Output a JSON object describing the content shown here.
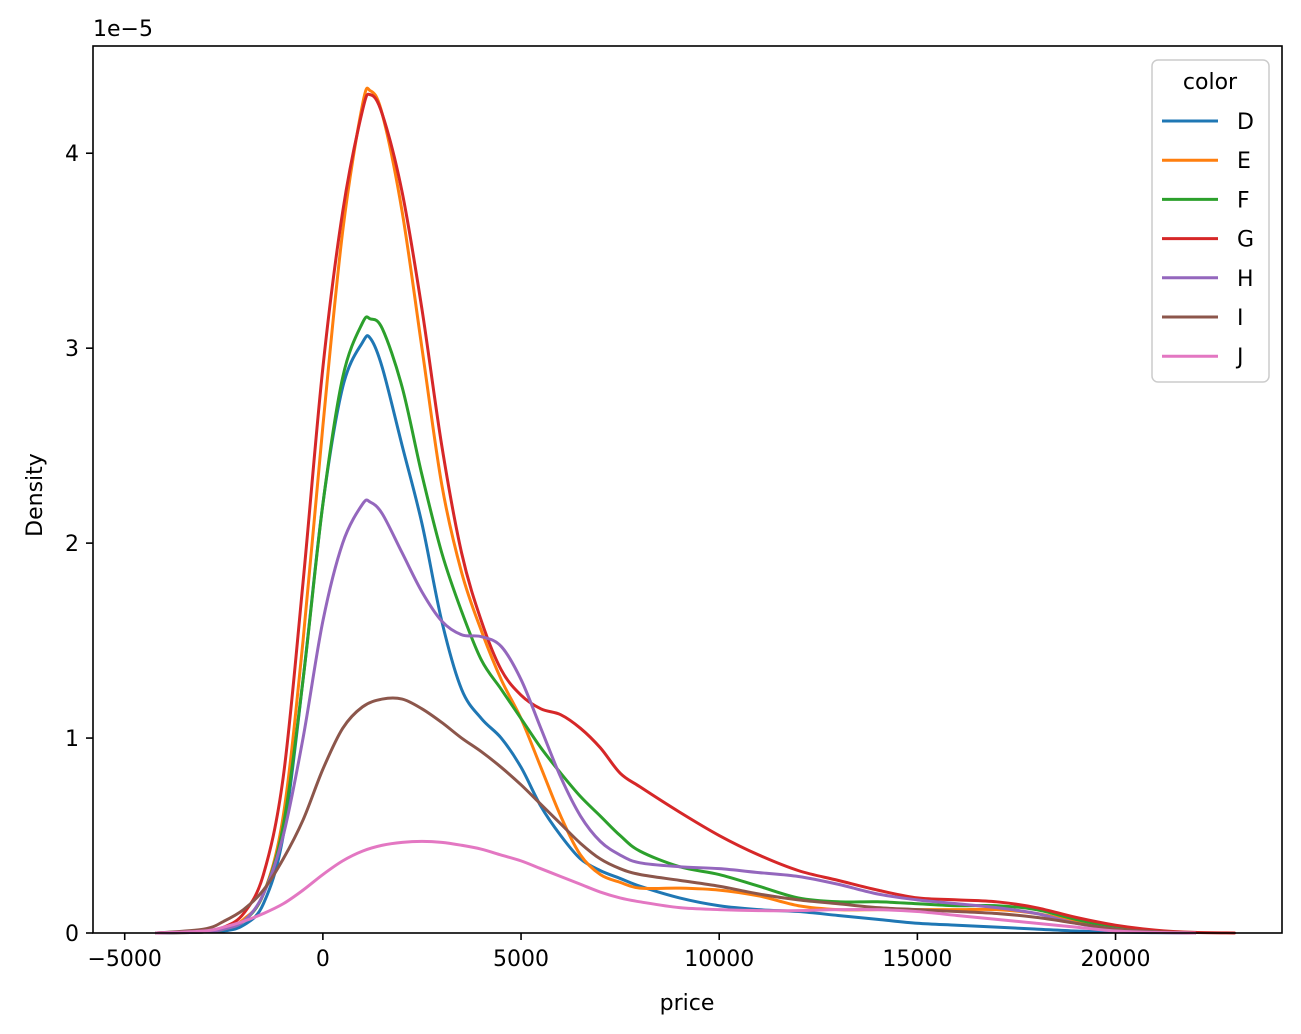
{
  "chart_data": {
    "type": "line",
    "title": "",
    "xlabel": "price",
    "ylabel": "Density",
    "y_scale_label": "1e−5",
    "xlim": [
      -5800,
      24200
    ],
    "ylim": [
      0,
      4.55
    ],
    "y_unit_multiplier": 1e-05,
    "xticks": [
      -5000,
      0,
      5000,
      10000,
      15000,
      20000
    ],
    "xtick_labels": [
      "−5000",
      "0",
      "5000",
      "10000",
      "15000",
      "20000"
    ],
    "yticks": [
      0,
      1,
      2,
      3,
      4
    ],
    "ytick_labels": [
      "0",
      "1",
      "2",
      "3",
      "4"
    ],
    "grid": false,
    "legend": {
      "title": "color",
      "placement": "top-right"
    },
    "series": [
      {
        "name": "D",
        "color": "#1f77b4",
        "points": [
          [
            -4200,
            0
          ],
          [
            -3000,
            0.005
          ],
          [
            -2500,
            0.01
          ],
          [
            -2000,
            0.04
          ],
          [
            -1500,
            0.15
          ],
          [
            -1000,
            0.5
          ],
          [
            -500,
            1.3
          ],
          [
            0,
            2.2
          ],
          [
            500,
            2.8
          ],
          [
            1000,
            3.03
          ],
          [
            1200,
            3.05
          ],
          [
            1500,
            2.9
          ],
          [
            2000,
            2.5
          ],
          [
            2500,
            2.1
          ],
          [
            3000,
            1.6
          ],
          [
            3500,
            1.25
          ],
          [
            4000,
            1.1
          ],
          [
            4500,
            1.0
          ],
          [
            5000,
            0.85
          ],
          [
            5500,
            0.65
          ],
          [
            6000,
            0.5
          ],
          [
            6500,
            0.38
          ],
          [
            7000,
            0.32
          ],
          [
            7500,
            0.28
          ],
          [
            8000,
            0.24
          ],
          [
            9000,
            0.18
          ],
          [
            10000,
            0.14
          ],
          [
            11000,
            0.12
          ],
          [
            12000,
            0.11
          ],
          [
            13000,
            0.09
          ],
          [
            14000,
            0.07
          ],
          [
            15000,
            0.05
          ],
          [
            16000,
            0.04
          ],
          [
            17000,
            0.03
          ],
          [
            18000,
            0.02
          ],
          [
            19000,
            0.01
          ],
          [
            20000,
            0.005
          ],
          [
            21000,
            0.002
          ],
          [
            22000,
            0
          ]
        ]
      },
      {
        "name": "E",
        "color": "#ff7f0e",
        "points": [
          [
            -4200,
            0
          ],
          [
            -3000,
            0.005
          ],
          [
            -2500,
            0.02
          ],
          [
            -2000,
            0.07
          ],
          [
            -1500,
            0.2
          ],
          [
            -1000,
            0.6
          ],
          [
            -500,
            1.5
          ],
          [
            0,
            2.6
          ],
          [
            500,
            3.6
          ],
          [
            1000,
            4.25
          ],
          [
            1200,
            4.32
          ],
          [
            1500,
            4.2
          ],
          [
            2000,
            3.7
          ],
          [
            2500,
            3.0
          ],
          [
            3000,
            2.3
          ],
          [
            3500,
            1.85
          ],
          [
            4000,
            1.55
          ],
          [
            4500,
            1.3
          ],
          [
            5000,
            1.1
          ],
          [
            5500,
            0.85
          ],
          [
            6000,
            0.6
          ],
          [
            6500,
            0.4
          ],
          [
            7000,
            0.3
          ],
          [
            7500,
            0.26
          ],
          [
            8000,
            0.23
          ],
          [
            9000,
            0.23
          ],
          [
            10000,
            0.22
          ],
          [
            11000,
            0.19
          ],
          [
            12000,
            0.14
          ],
          [
            13000,
            0.12
          ],
          [
            14000,
            0.12
          ],
          [
            15000,
            0.12
          ],
          [
            16000,
            0.12
          ],
          [
            17000,
            0.12
          ],
          [
            18000,
            0.1
          ],
          [
            19000,
            0.06
          ],
          [
            20000,
            0.03
          ],
          [
            21000,
            0.01
          ],
          [
            22000,
            0
          ]
        ]
      },
      {
        "name": "F",
        "color": "#2ca02c",
        "points": [
          [
            -4200,
            0
          ],
          [
            -3000,
            0.005
          ],
          [
            -2500,
            0.02
          ],
          [
            -2000,
            0.06
          ],
          [
            -1500,
            0.2
          ],
          [
            -1000,
            0.55
          ],
          [
            -500,
            1.3
          ],
          [
            0,
            2.2
          ],
          [
            500,
            2.85
          ],
          [
            1000,
            3.13
          ],
          [
            1200,
            3.15
          ],
          [
            1500,
            3.1
          ],
          [
            2000,
            2.8
          ],
          [
            2500,
            2.35
          ],
          [
            3000,
            1.95
          ],
          [
            3500,
            1.65
          ],
          [
            4000,
            1.4
          ],
          [
            4500,
            1.25
          ],
          [
            5000,
            1.1
          ],
          [
            5500,
            0.95
          ],
          [
            6000,
            0.82
          ],
          [
            6500,
            0.7
          ],
          [
            7000,
            0.6
          ],
          [
            7500,
            0.5
          ],
          [
            8000,
            0.42
          ],
          [
            9000,
            0.34
          ],
          [
            10000,
            0.3
          ],
          [
            11000,
            0.24
          ],
          [
            12000,
            0.18
          ],
          [
            13000,
            0.16
          ],
          [
            14000,
            0.16
          ],
          [
            15000,
            0.15
          ],
          [
            16000,
            0.14
          ],
          [
            17000,
            0.14
          ],
          [
            18000,
            0.12
          ],
          [
            19000,
            0.07
          ],
          [
            20000,
            0.03
          ],
          [
            21000,
            0.01
          ],
          [
            22000,
            0
          ]
        ]
      },
      {
        "name": "G",
        "color": "#d62728",
        "points": [
          [
            -4200,
            0
          ],
          [
            -3000,
            0.01
          ],
          [
            -2500,
            0.03
          ],
          [
            -2000,
            0.1
          ],
          [
            -1500,
            0.3
          ],
          [
            -1000,
            0.8
          ],
          [
            -500,
            1.8
          ],
          [
            0,
            2.9
          ],
          [
            500,
            3.7
          ],
          [
            1000,
            4.22
          ],
          [
            1200,
            4.3
          ],
          [
            1500,
            4.2
          ],
          [
            2000,
            3.8
          ],
          [
            2500,
            3.2
          ],
          [
            3000,
            2.5
          ],
          [
            3500,
            1.95
          ],
          [
            4000,
            1.6
          ],
          [
            4500,
            1.35
          ],
          [
            5000,
            1.22
          ],
          [
            5500,
            1.15
          ],
          [
            6000,
            1.12
          ],
          [
            6500,
            1.05
          ],
          [
            7000,
            0.95
          ],
          [
            7500,
            0.82
          ],
          [
            8000,
            0.75
          ],
          [
            9000,
            0.62
          ],
          [
            10000,
            0.5
          ],
          [
            11000,
            0.4
          ],
          [
            12000,
            0.32
          ],
          [
            13000,
            0.27
          ],
          [
            14000,
            0.22
          ],
          [
            15000,
            0.18
          ],
          [
            16000,
            0.17
          ],
          [
            17000,
            0.16
          ],
          [
            18000,
            0.13
          ],
          [
            19000,
            0.08
          ],
          [
            20000,
            0.04
          ],
          [
            21000,
            0.015
          ],
          [
            22000,
            0.003
          ],
          [
            23000,
            0
          ]
        ]
      },
      {
        "name": "H",
        "color": "#9467bd",
        "points": [
          [
            -4200,
            0
          ],
          [
            -3000,
            0.005
          ],
          [
            -2500,
            0.02
          ],
          [
            -2000,
            0.06
          ],
          [
            -1500,
            0.2
          ],
          [
            -1000,
            0.5
          ],
          [
            -500,
            1.0
          ],
          [
            0,
            1.6
          ],
          [
            500,
            2.0
          ],
          [
            1000,
            2.2
          ],
          [
            1200,
            2.21
          ],
          [
            1500,
            2.15
          ],
          [
            2000,
            1.95
          ],
          [
            2500,
            1.75
          ],
          [
            3000,
            1.6
          ],
          [
            3500,
            1.53
          ],
          [
            4000,
            1.52
          ],
          [
            4500,
            1.47
          ],
          [
            5000,
            1.3
          ],
          [
            5500,
            1.05
          ],
          [
            6000,
            0.8
          ],
          [
            6500,
            0.6
          ],
          [
            7000,
            0.47
          ],
          [
            7500,
            0.4
          ],
          [
            8000,
            0.36
          ],
          [
            9000,
            0.34
          ],
          [
            10000,
            0.33
          ],
          [
            11000,
            0.31
          ],
          [
            12000,
            0.29
          ],
          [
            13000,
            0.25
          ],
          [
            14000,
            0.2
          ],
          [
            15000,
            0.17
          ],
          [
            16000,
            0.15
          ],
          [
            17000,
            0.13
          ],
          [
            18000,
            0.1
          ],
          [
            19000,
            0.05
          ],
          [
            20000,
            0.02
          ],
          [
            21000,
            0.005
          ],
          [
            22000,
            0
          ]
        ]
      },
      {
        "name": "I",
        "color": "#8c564b",
        "points": [
          [
            -4200,
            0
          ],
          [
            -3000,
            0.02
          ],
          [
            -2500,
            0.06
          ],
          [
            -2000,
            0.12
          ],
          [
            -1500,
            0.22
          ],
          [
            -1000,
            0.38
          ],
          [
            -500,
            0.58
          ],
          [
            0,
            0.84
          ],
          [
            500,
            1.05
          ],
          [
            1000,
            1.16
          ],
          [
            1500,
            1.2
          ],
          [
            2000,
            1.2
          ],
          [
            2500,
            1.15
          ],
          [
            3000,
            1.08
          ],
          [
            3500,
            1.0
          ],
          [
            4000,
            0.93
          ],
          [
            4500,
            0.85
          ],
          [
            5000,
            0.76
          ],
          [
            5500,
            0.66
          ],
          [
            6000,
            0.56
          ],
          [
            6500,
            0.46
          ],
          [
            7000,
            0.38
          ],
          [
            7500,
            0.33
          ],
          [
            8000,
            0.3
          ],
          [
            9000,
            0.27
          ],
          [
            10000,
            0.24
          ],
          [
            11000,
            0.2
          ],
          [
            12000,
            0.17
          ],
          [
            13000,
            0.15
          ],
          [
            14000,
            0.13
          ],
          [
            15000,
            0.12
          ],
          [
            16000,
            0.11
          ],
          [
            17000,
            0.1
          ],
          [
            18000,
            0.08
          ],
          [
            19000,
            0.05
          ],
          [
            20000,
            0.02
          ],
          [
            21000,
            0.007
          ],
          [
            22000,
            0
          ]
        ]
      },
      {
        "name": "J",
        "color": "#e377c2",
        "points": [
          [
            -4200,
            0
          ],
          [
            -3000,
            0.01
          ],
          [
            -2500,
            0.03
          ],
          [
            -2000,
            0.06
          ],
          [
            -1500,
            0.1
          ],
          [
            -1000,
            0.15
          ],
          [
            -500,
            0.22
          ],
          [
            0,
            0.3
          ],
          [
            500,
            0.37
          ],
          [
            1000,
            0.42
          ],
          [
            1500,
            0.45
          ],
          [
            2000,
            0.465
          ],
          [
            2500,
            0.47
          ],
          [
            3000,
            0.465
          ],
          [
            3500,
            0.45
          ],
          [
            4000,
            0.43
          ],
          [
            4500,
            0.4
          ],
          [
            5000,
            0.37
          ],
          [
            5500,
            0.33
          ],
          [
            6000,
            0.29
          ],
          [
            6500,
            0.25
          ],
          [
            7000,
            0.21
          ],
          [
            7500,
            0.18
          ],
          [
            8000,
            0.16
          ],
          [
            9000,
            0.13
          ],
          [
            10000,
            0.12
          ],
          [
            11000,
            0.115
          ],
          [
            12000,
            0.115
          ],
          [
            13000,
            0.12
          ],
          [
            14000,
            0.12
          ],
          [
            15000,
            0.11
          ],
          [
            16000,
            0.09
          ],
          [
            17000,
            0.07
          ],
          [
            18000,
            0.05
          ],
          [
            19000,
            0.03
          ],
          [
            20000,
            0.01
          ],
          [
            21000,
            0.003
          ],
          [
            22000,
            0
          ]
        ]
      }
    ]
  }
}
